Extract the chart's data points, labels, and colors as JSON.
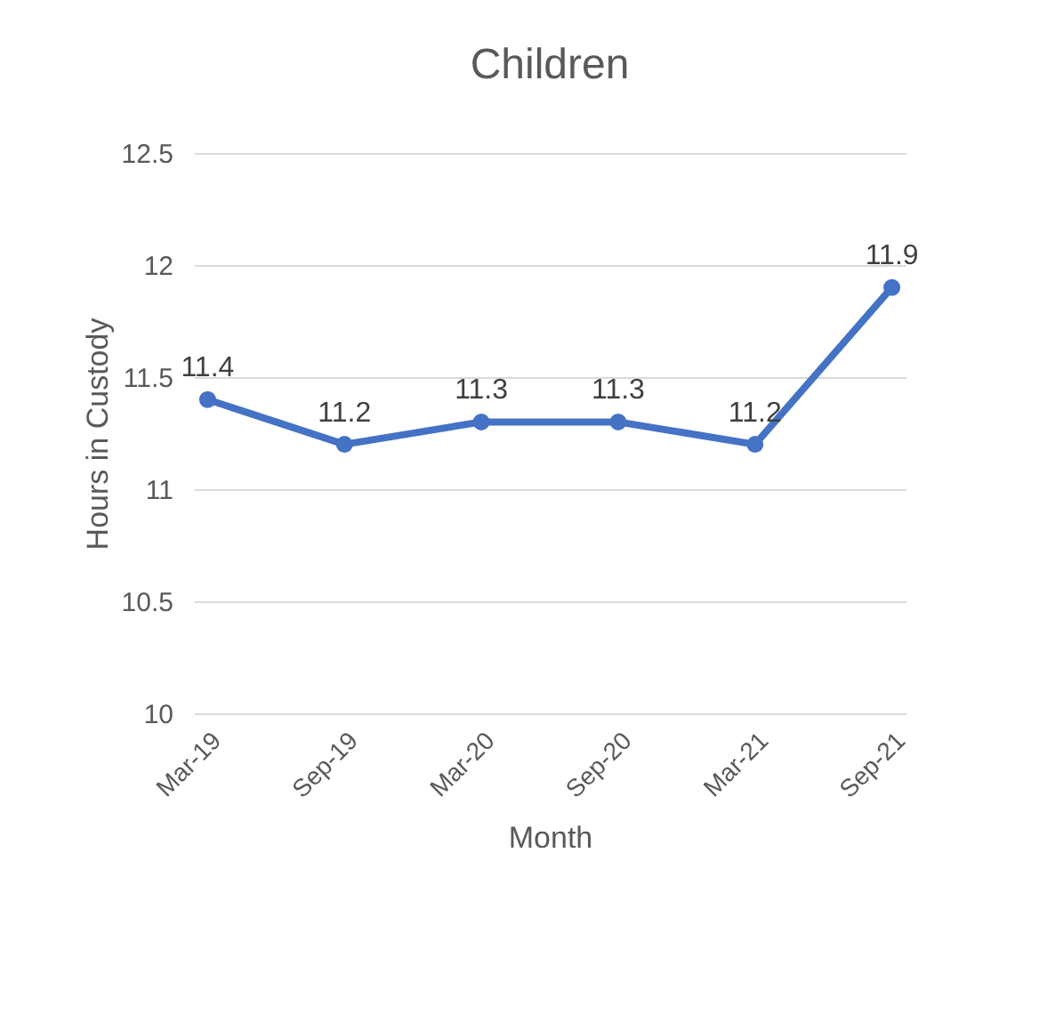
{
  "chart_data": {
    "type": "line",
    "title": "Children",
    "xlabel": "Month",
    "ylabel": "Hours in Custody",
    "categories": [
      "Mar-19",
      "Sep-19",
      "Mar-20",
      "Sep-20",
      "Mar-21",
      "Sep-21"
    ],
    "series": [
      {
        "color": "#4472c4",
        "values": [
          11.4,
          11.2,
          11.3,
          11.3,
          11.2,
          11.9
        ]
      }
    ],
    "ylim": [
      10,
      12.5
    ],
    "yticks": [
      10,
      10.5,
      11,
      11.5,
      12,
      12.5
    ],
    "grid": "y",
    "marker": "circle",
    "line_style": "solid",
    "data_labels": true
  }
}
